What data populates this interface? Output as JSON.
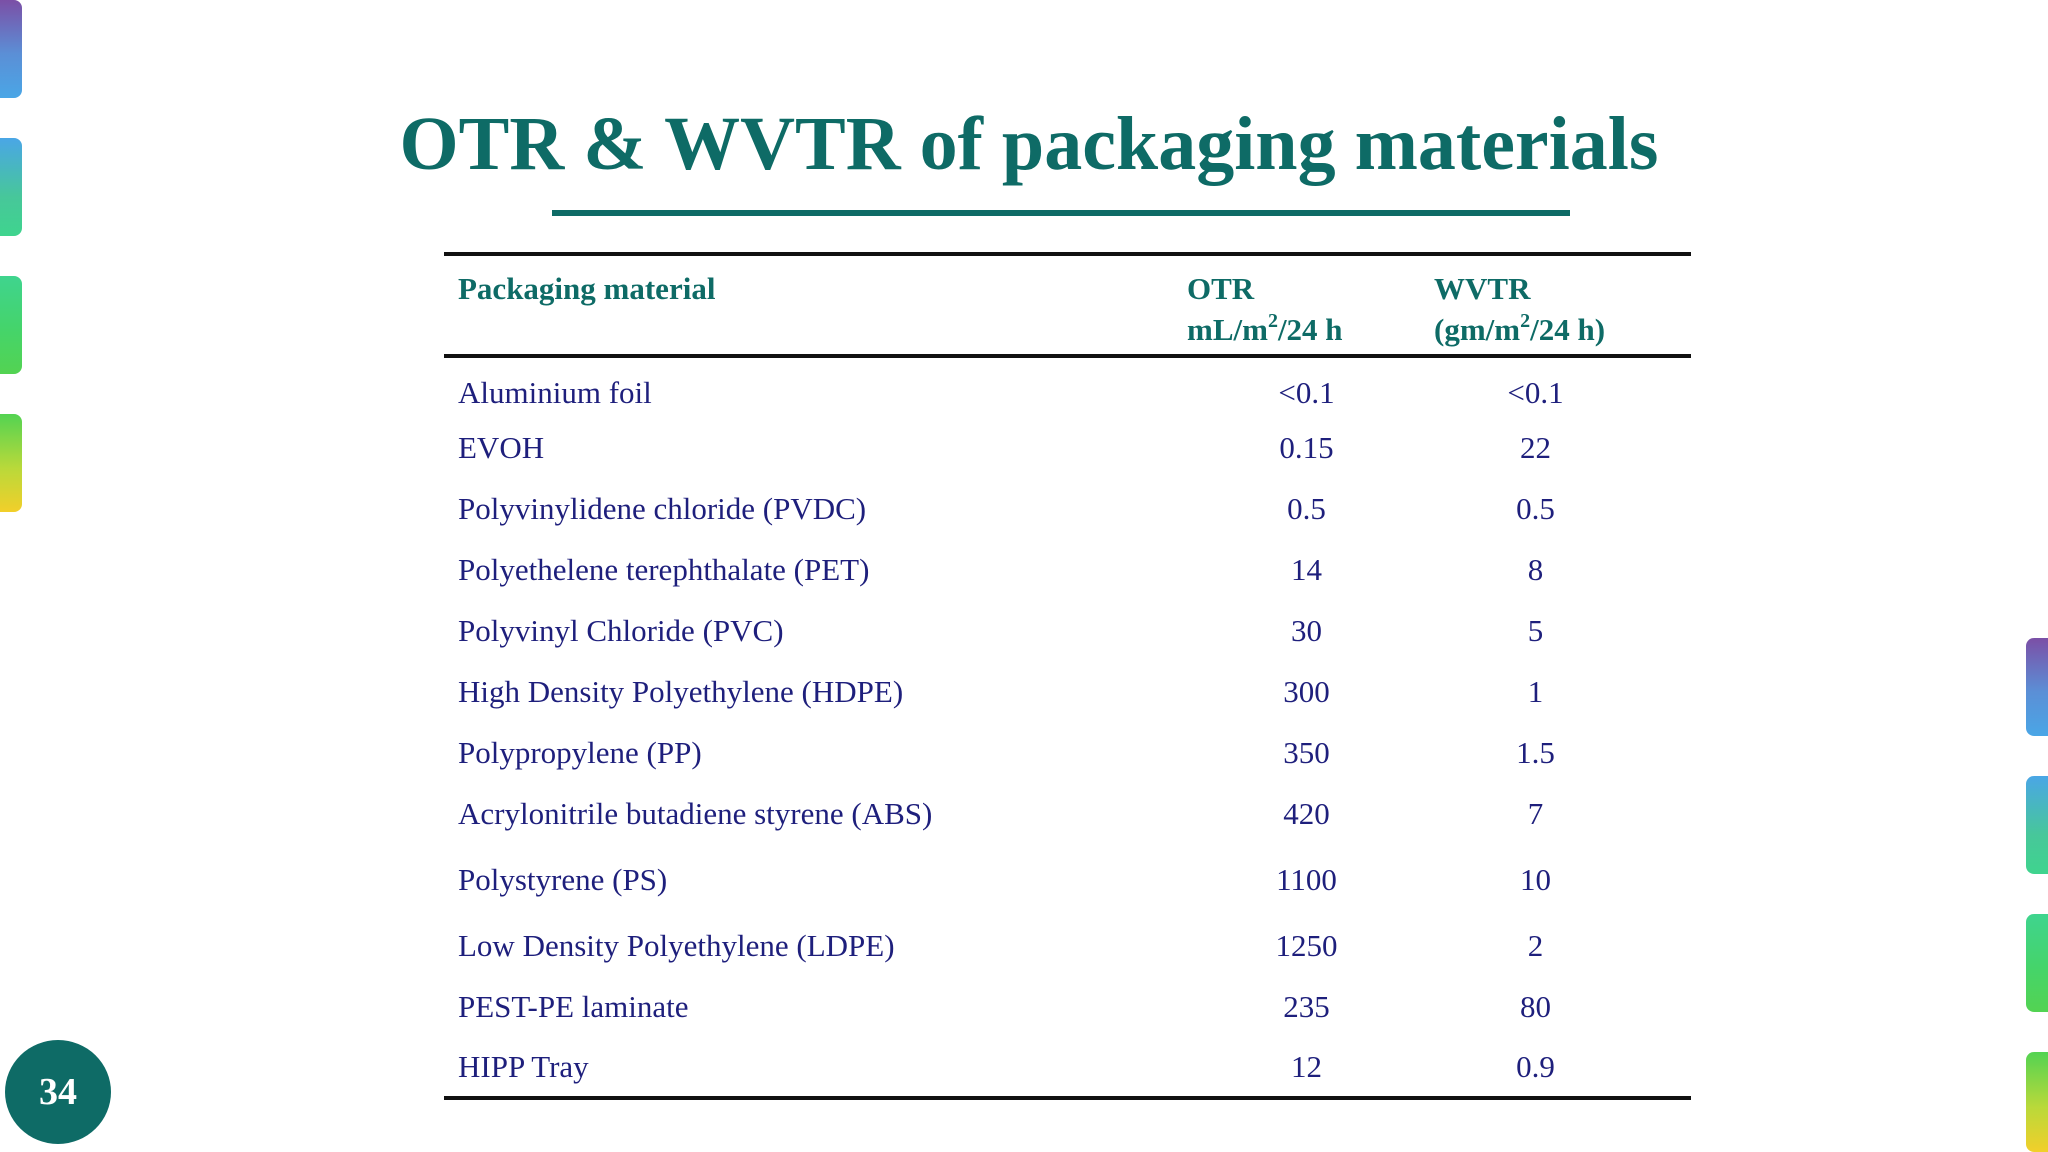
{
  "slide": {
    "title": "OTR & WVTR of packaging materials",
    "page_number": "34",
    "colors": {
      "title": "#0e6b66",
      "table_text": "#1e1f7c",
      "rule": "#111111",
      "page_badge": "#0e6b66"
    }
  },
  "table": {
    "headers": {
      "material": "Packaging material",
      "otr_label": "OTR",
      "otr_unit_pre": "mL/m",
      "otr_unit_sup": "2",
      "otr_unit_post": "/24 h",
      "wvtr_label": "WVTR",
      "wvtr_unit_pre": "(gm/m",
      "wvtr_unit_sup": "2",
      "wvtr_unit_post": "/24 h)"
    },
    "rows": [
      {
        "material": "Aluminium foil",
        "otr": "<0.1",
        "wvtr": "<0.1"
      },
      {
        "material": "EVOH",
        "otr": "0.15",
        "wvtr": "22"
      },
      {
        "material": "Polyvinylidene chloride (PVDC)",
        "otr": "0.5",
        "wvtr": "0.5"
      },
      {
        "material": "Polyethelene terephthalate (PET)",
        "otr": "14",
        "wvtr": "8"
      },
      {
        "material": "Polyvinyl Chloride (PVC)",
        "otr": "30",
        "wvtr": "5"
      },
      {
        "material": "High Density Polyethylene (HDPE)",
        "otr": "300",
        "wvtr": "1"
      },
      {
        "material": "Polypropylene (PP)",
        "otr": "350",
        "wvtr": "1.5"
      },
      {
        "material": "Acrylonitrile butadiene styrene (ABS)",
        "otr": "420",
        "wvtr": "7"
      },
      {
        "material": "Polystyrene (PS)",
        "otr": "1100",
        "wvtr": "10"
      },
      {
        "material": "Low Density Polyethylene (LDPE)",
        "otr": "1250",
        "wvtr": "2"
      },
      {
        "material": "PEST-PE laminate",
        "otr": "235",
        "wvtr": "80"
      },
      {
        "material": "HIPP Tray",
        "otr": "12",
        "wvtr": "0.9"
      }
    ]
  }
}
